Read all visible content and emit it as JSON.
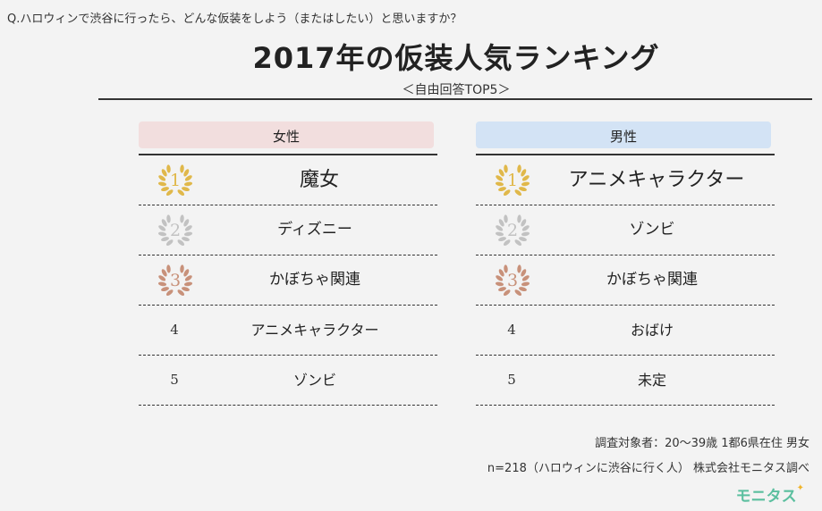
{
  "question": "Q.ハロウィンで渋谷に行ったら、どんな仮装をしよう（またはしたい）と思いますか？",
  "title": "2017年の仮装人気ランキング",
  "subtitle": "＜自由回答TOP5＞",
  "colors": {
    "female_header": "#f2dede",
    "male_header": "#d3e3f5",
    "gold": "#e0b84a",
    "silver": "#c2c2c2",
    "bronze": "#c8917a",
    "brand": "#5bbf9f"
  },
  "female": {
    "header": "女性",
    "rows": [
      {
        "rank": "1",
        "item": "魔女"
      },
      {
        "rank": "2",
        "item": "ディズニー"
      },
      {
        "rank": "3",
        "item": "かぼちゃ関連"
      },
      {
        "rank": "4",
        "item": "アニメキャラクター"
      },
      {
        "rank": "5",
        "item": "ゾンビ"
      }
    ]
  },
  "male": {
    "header": "男性",
    "rows": [
      {
        "rank": "1",
        "item": "アニメキャラクター"
      },
      {
        "rank": "2",
        "item": "ゾンビ"
      },
      {
        "rank": "3",
        "item": "かぼちゃ関連"
      },
      {
        "rank": "4",
        "item": "おばけ"
      },
      {
        "rank": "5",
        "item": "未定"
      }
    ]
  },
  "notes": {
    "survey": "調査対象者：20～39歳 1都6県在住 男女",
    "source": "n=218（ハロウィンに渋谷に行く人） 株式会社モニタス調べ"
  },
  "logo": {
    "text": "モニタス",
    "star": "✦"
  }
}
